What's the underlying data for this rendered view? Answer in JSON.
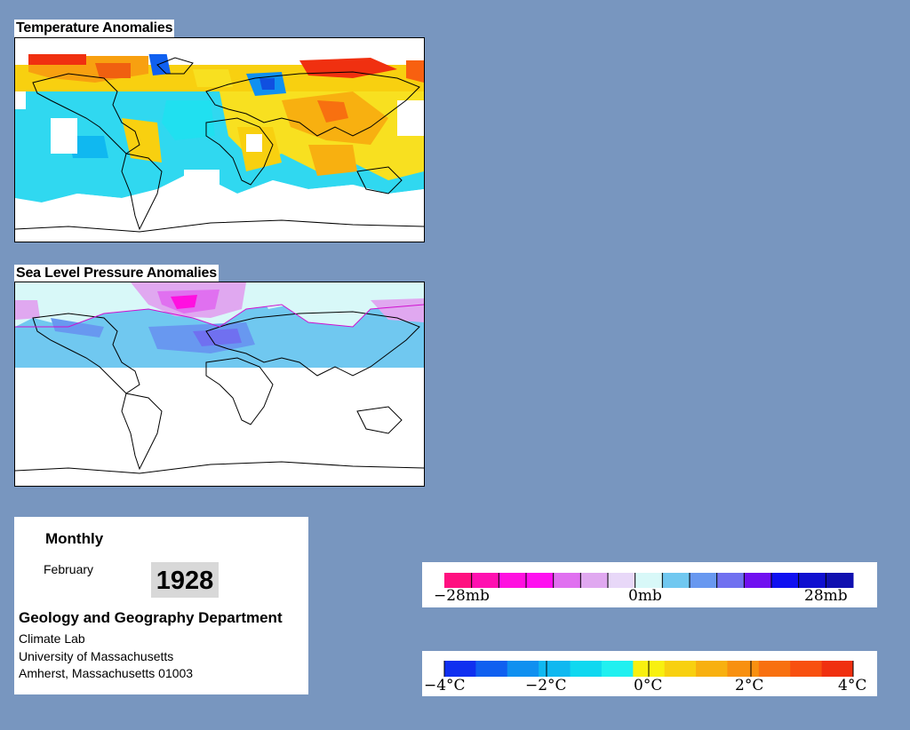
{
  "maps": {
    "temperature_title": "Temperature Anomalies",
    "pressure_title": "Sea Level Pressure Anomalies"
  },
  "info": {
    "period": "Monthly",
    "month": "February",
    "year": "1928",
    "department": "Geology and Geography Department",
    "lab": "Climate Lab",
    "university": "University of Massachusetts",
    "address": "Amherst, Massachusetts 01003"
  },
  "pressure_legend": {
    "labels": [
      "−28mb",
      "0mb",
      "28mb"
    ],
    "colors": [
      "#ff1080",
      "#ff10b0",
      "#ff10e0",
      "#ff10f0",
      "#e070f0",
      "#e0a8f0",
      "#e8d8f8",
      "#d8f8f8",
      "#70c8f0",
      "#6898f0",
      "#7070f0",
      "#7010f0",
      "#1010f0",
      "#1010d0",
      "#1010b0"
    ]
  },
  "temperature_legend": {
    "labels": [
      "−4°C",
      "−2°C",
      "0°C",
      "2°C",
      "4°C"
    ],
    "colors": [
      "#1030f0",
      "#1060f0",
      "#1090f0",
      "#10b8f0",
      "#10d8f0",
      "#20f0f0",
      "#f8f010",
      "#f8d010",
      "#f8b010",
      "#f89010",
      "#f87010",
      "#f85010",
      "#f03010"
    ]
  },
  "colors": {
    "background": "#7896bf",
    "coast": "#000000"
  }
}
